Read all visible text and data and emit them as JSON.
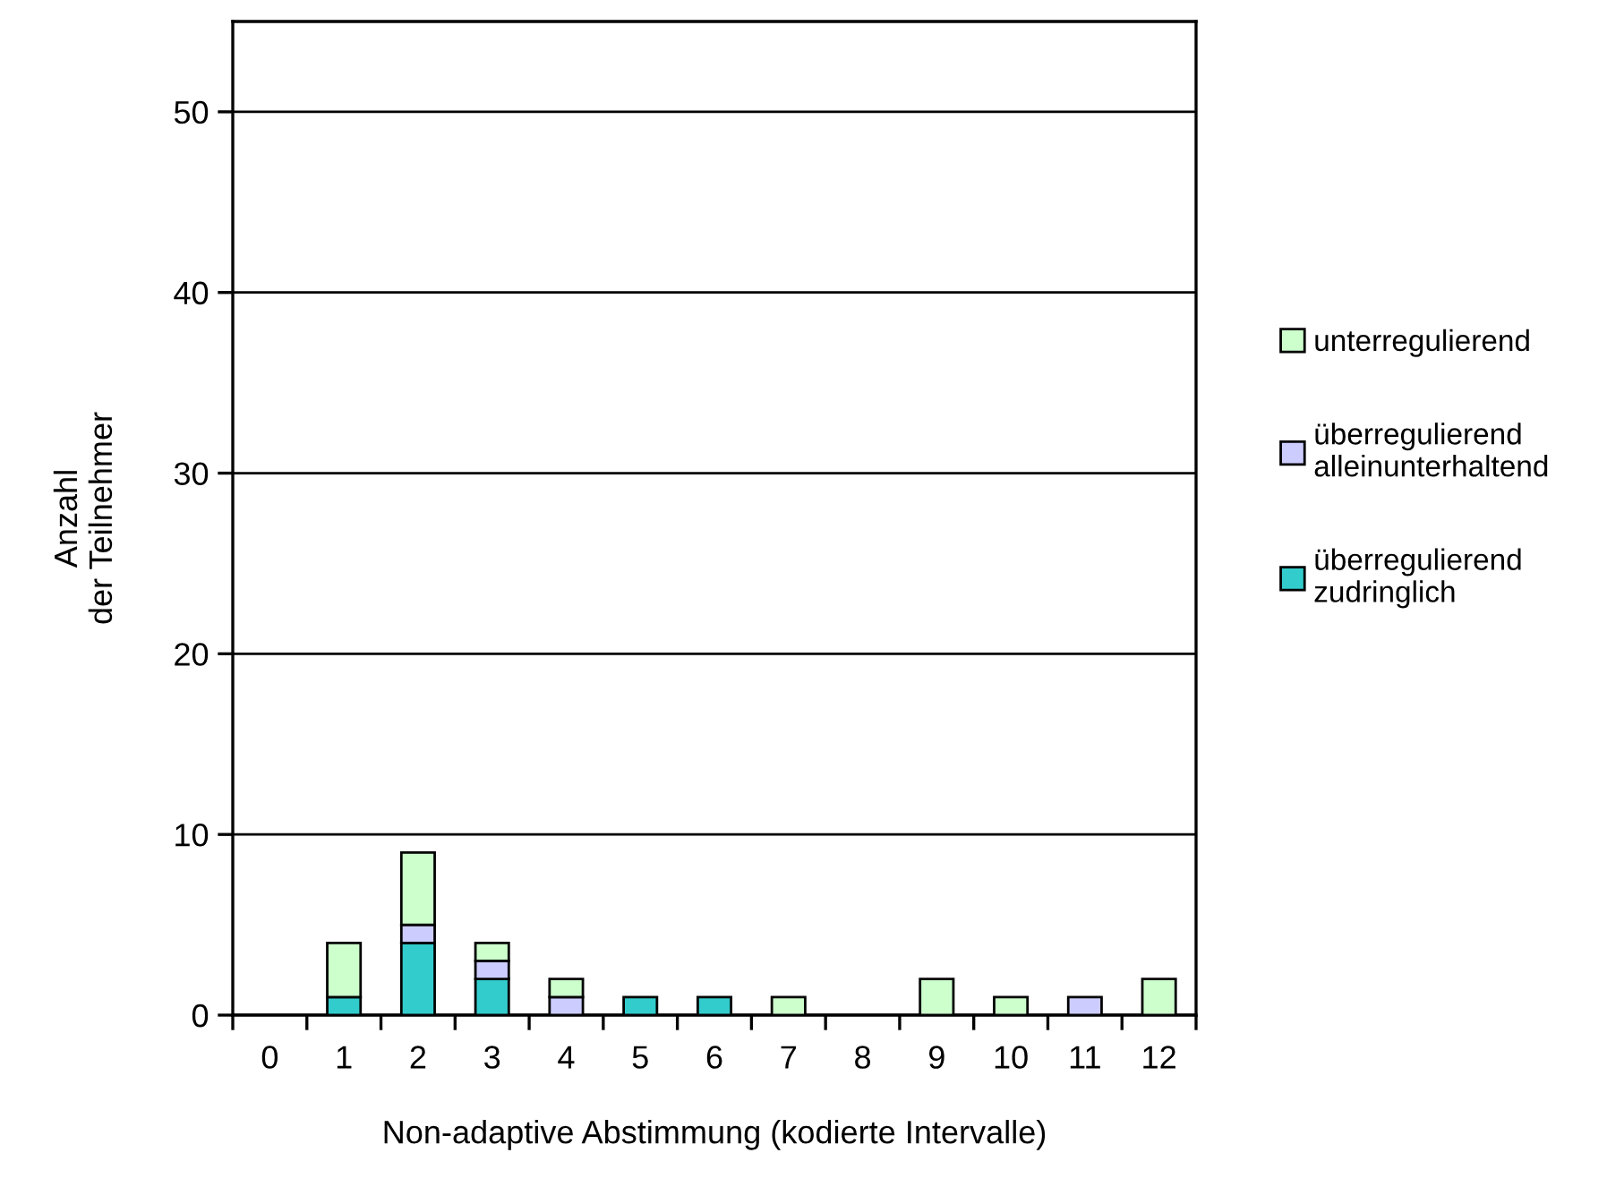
{
  "chart_data": {
    "type": "bar",
    "stacked": true,
    "xlabel": "Non-adaptive Abstimmung (kodierte Intervalle)",
    "ylabel": "Anzahl\nder Teilnehmer",
    "categories": [
      "0",
      "1",
      "2",
      "3",
      "4",
      "5",
      "6",
      "7",
      "8",
      "9",
      "10",
      "11",
      "12"
    ],
    "series": [
      {
        "name": "überregulierend\nzudringlich",
        "color": "#33cccc",
        "values": [
          0,
          1,
          4,
          2,
          0,
          1,
          1,
          0,
          0,
          0,
          0,
          0,
          0
        ]
      },
      {
        "name": "überregulierend\nalleinunterhaltend",
        "color": "#ccccff",
        "values": [
          0,
          0,
          1,
          1,
          1,
          0,
          0,
          0,
          0,
          0,
          0,
          1,
          0
        ]
      },
      {
        "name": "unterregulierend",
        "color": "#ccffcc",
        "values": [
          0,
          3,
          4,
          1,
          1,
          0,
          0,
          1,
          0,
          2,
          1,
          0,
          2
        ]
      }
    ],
    "ylim": [
      0,
      55
    ],
    "yticks": [
      0,
      10,
      20,
      30,
      40,
      50
    ],
    "grid": "y",
    "legend": "right"
  }
}
